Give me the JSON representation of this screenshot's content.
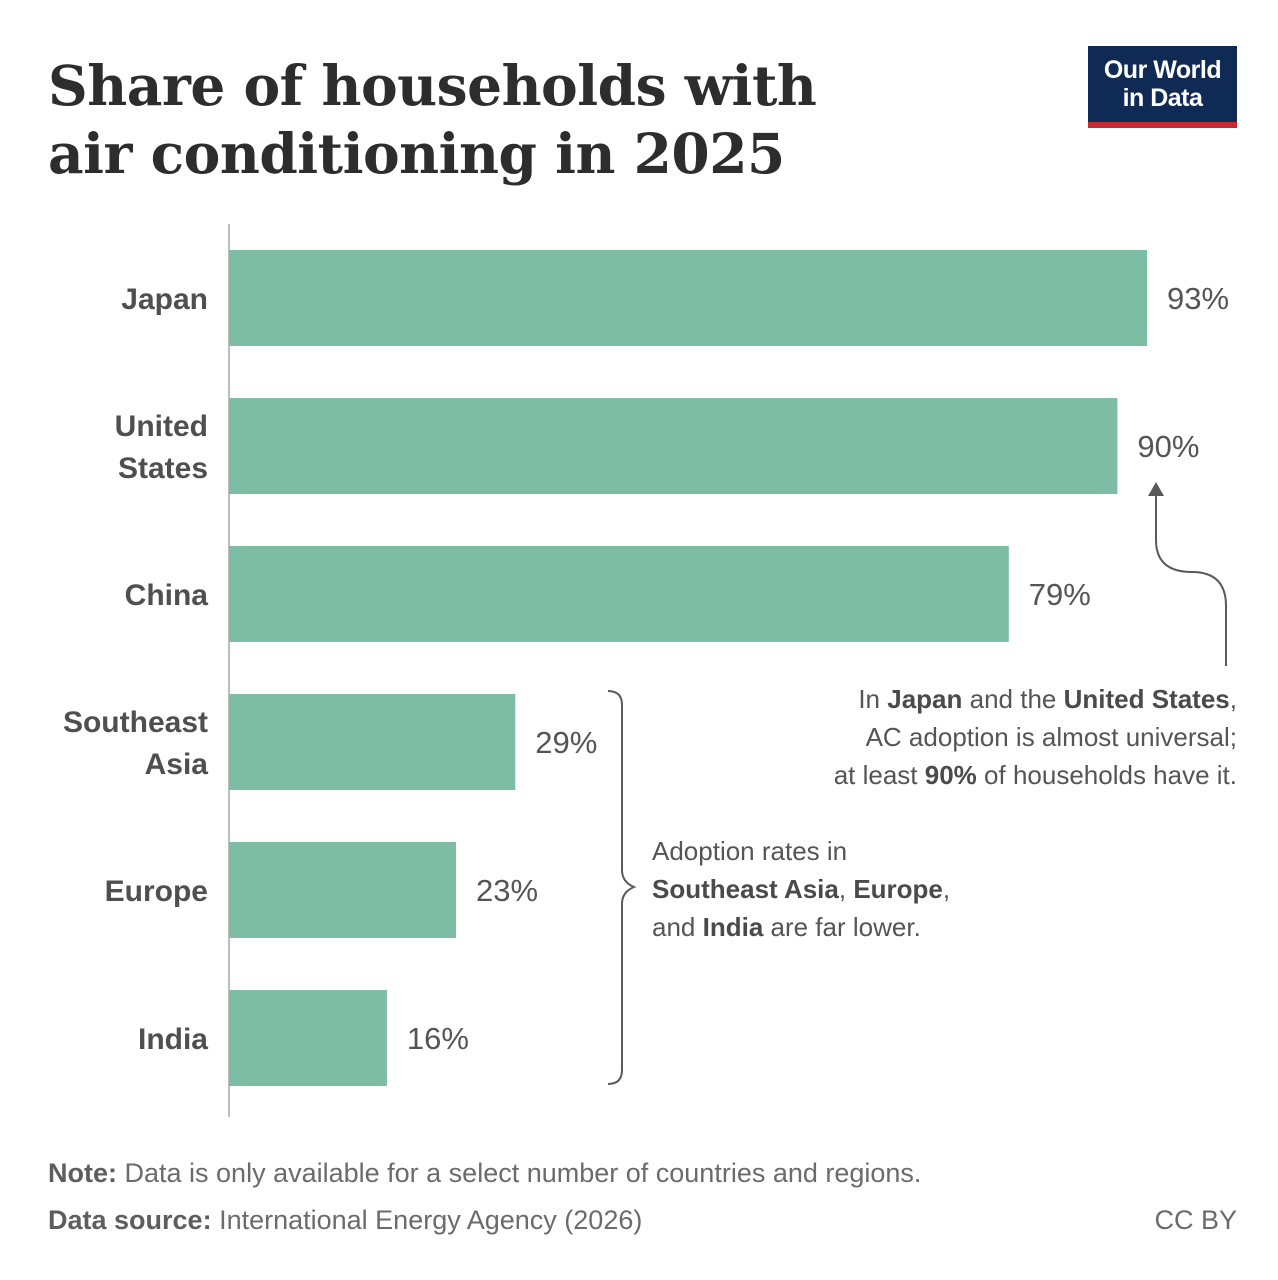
{
  "title_lines": [
    "Share of households with",
    "air conditioning in 2025"
  ],
  "logo_lines": [
    "Our World",
    "in Data"
  ],
  "chart_data": {
    "type": "bar",
    "orientation": "horizontal",
    "categories": [
      "Japan",
      "United States",
      "China",
      "Southeast Asia",
      "Europe",
      "India"
    ],
    "category_label_lines": [
      [
        "Japan"
      ],
      [
        "United",
        "States"
      ],
      [
        "China"
      ],
      [
        "Southeast",
        "Asia"
      ],
      [
        "Europe"
      ],
      [
        "India"
      ]
    ],
    "values": [
      93,
      90,
      79,
      29,
      23,
      16
    ],
    "value_labels": [
      "93%",
      "90%",
      "79%",
      "29%",
      "23%",
      "16%"
    ],
    "unit": "%",
    "xlim": [
      0,
      100
    ],
    "bar_color": "#7dbda3",
    "grid": false
  },
  "annotations": {
    "top": {
      "line1": {
        "pre": "In ",
        "b1": "Japan",
        "mid": " and the ",
        "b2": "United States",
        "post": ","
      },
      "line2": "AC adoption is almost universal;",
      "line3": {
        "pre": "at least ",
        "b": "90%",
        "post": " of households have it."
      }
    },
    "bottom": {
      "line1": "Adoption rates in",
      "line2": {
        "b1": "Southeast Asia",
        "sep": ", ",
        "b2": "Europe",
        "post": ","
      },
      "line3": {
        "pre": "and ",
        "b": "India",
        "post": " are far lower."
      }
    }
  },
  "footer": {
    "note_label": "Note:",
    "note_text": " Data is only available for a select number of countries and regions.",
    "source_label": "Data source:",
    "source_text": " International Energy Agency (2026)",
    "license": "CC BY"
  }
}
